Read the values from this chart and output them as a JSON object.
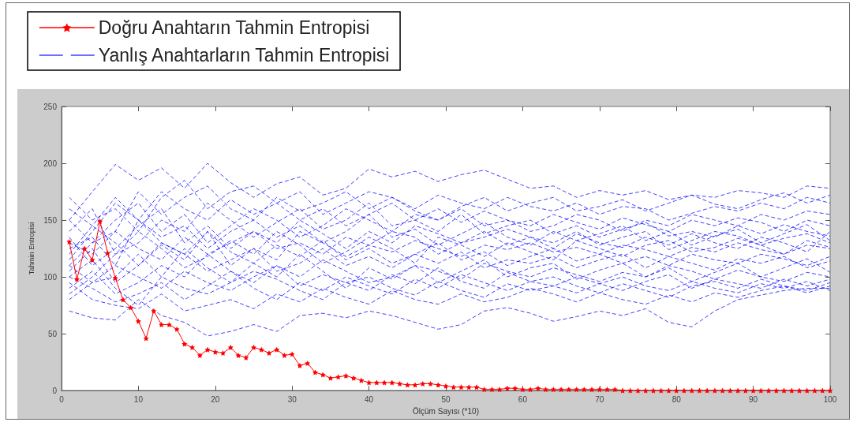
{
  "chart_data": {
    "type": "line",
    "xlabel": "Ölçüm Sayısı (*10)",
    "ylabel": "Tahmin Entropisi",
    "xlim": [
      0,
      100
    ],
    "xticks": [
      0,
      10,
      20,
      30,
      40,
      50,
      60,
      70,
      80,
      90,
      100
    ],
    "ylim": [
      0,
      250
    ],
    "yticks": [
      0,
      50,
      100,
      150,
      200,
      250
    ],
    "grid": false,
    "legend": "top left",
    "x": [
      1,
      4,
      7,
      10,
      13,
      16,
      19,
      22,
      25,
      28,
      31,
      34,
      37,
      40,
      43,
      46,
      49,
      52,
      55,
      58,
      61,
      64,
      67,
      70,
      73,
      76,
      79,
      82,
      85,
      88,
      91,
      94,
      97,
      100
    ],
    "series": [
      {
        "name": "Doğru Anahtarın Tahmin Entropisi",
        "color": "#ff0000",
        "marker": "star",
        "line_style": "solid",
        "x": [
          1,
          2,
          3,
          4,
          5,
          6,
          7,
          8,
          9,
          10,
          11,
          12,
          13,
          14,
          15,
          16,
          17,
          18,
          19,
          20,
          21,
          22,
          23,
          24,
          25,
          26,
          27,
          28,
          29,
          30,
          31,
          32,
          33,
          34,
          35,
          36,
          37,
          38,
          39,
          40,
          41,
          42,
          43,
          44,
          45,
          46,
          47,
          48,
          49,
          50,
          51,
          52,
          53,
          54,
          55,
          56,
          57,
          58,
          59,
          60,
          61,
          62,
          63,
          64,
          65,
          66,
          67,
          68,
          69,
          70,
          71,
          72,
          73,
          74,
          75,
          76,
          77,
          78,
          79,
          80,
          81,
          82,
          83,
          84,
          85,
          86,
          87,
          88,
          89,
          90,
          91,
          92,
          93,
          94,
          95,
          96,
          97,
          98,
          99,
          100
        ],
        "values": [
          131,
          98,
          125,
          115,
          149,
          121,
          99,
          80,
          73,
          61,
          46,
          70,
          58,
          58,
          54,
          41,
          38,
          31,
          36,
          34,
          33,
          38,
          31,
          29,
          38,
          36,
          33,
          36,
          31,
          32,
          22,
          24,
          16,
          14,
          11,
          12,
          13,
          11,
          9,
          7,
          7,
          7,
          7,
          6,
          5,
          5,
          6,
          6,
          5,
          4,
          3,
          3,
          3,
          3,
          1,
          1,
          1,
          2,
          2,
          1,
          1,
          2,
          1,
          1,
          1,
          1,
          1,
          1,
          1,
          1,
          1,
          1,
          0,
          0,
          0,
          0,
          0,
          0,
          0,
          0,
          0,
          0,
          0,
          0,
          0,
          0,
          0,
          0,
          0,
          0,
          0,
          0,
          0,
          0,
          0,
          0,
          0,
          0,
          0,
          0
        ]
      },
      {
        "name": "Yanlış Anahtarların Tahmin Entropisi",
        "color": "#0000ff",
        "marker": "none",
        "line_style": "dashed",
        "values": [
          150,
          175,
          199,
          185,
          196,
          178,
          200,
          183,
          170,
          182,
          188,
          172,
          178,
          195,
          188,
          193,
          184,
          190,
          194,
          186,
          178,
          180,
          170,
          176,
          172,
          176,
          168,
          172,
          170,
          176,
          174,
          170,
          180,
          178
        ]
      },
      {
        "color": "#0000ff",
        "marker": "none",
        "line_style": "dashed",
        "values": [
          70,
          64,
          62,
          80,
          66,
          60,
          48,
          52,
          58,
          52,
          66,
          68,
          64,
          70,
          66,
          60,
          54,
          58,
          70,
          73,
          68,
          61,
          65,
          70,
          66,
          72,
          60,
          56,
          70,
          80,
          84,
          88,
          90,
          90
        ]
      },
      {
        "color": "#0000ff",
        "marker": "none",
        "line_style": "dashed",
        "values": [
          110,
          130,
          150,
          165,
          140,
          155,
          130,
          145,
          160,
          150,
          135,
          145,
          160,
          150,
          140,
          155,
          150,
          160,
          145,
          150,
          140,
          145,
          155,
          150,
          140,
          150,
          145,
          155,
          150,
          145,
          155,
          150,
          158,
          155
        ]
      },
      {
        "color": "#0000ff",
        "marker": "none",
        "line_style": "dashed",
        "values": [
          90,
          105,
          85,
          95,
          110,
          100,
          120,
          105,
          95,
          110,
          100,
          115,
          105,
          95,
          100,
          110,
          105,
          98,
          112,
          105,
          100,
          108,
          102,
          96,
          104,
          100,
          110,
          105,
          98,
          106,
          100,
          96,
          104,
          100
        ]
      },
      {
        "color": "#0000ff",
        "marker": "none",
        "line_style": "dashed",
        "values": [
          130,
          120,
          140,
          125,
          115,
          135,
          120,
          130,
          140,
          125,
          130,
          120,
          135,
          128,
          122,
          132,
          125,
          118,
          128,
          124,
          130,
          122,
          126,
          120,
          128,
          124,
          118,
          126,
          122,
          130,
          124,
          120,
          128,
          125
        ]
      },
      {
        "color": "#0000ff",
        "marker": "none",
        "line_style": "dashed",
        "values": [
          160,
          145,
          170,
          150,
          175,
          160,
          150,
          168,
          155,
          165,
          150,
          160,
          145,
          155,
          165,
          150,
          160,
          148,
          158,
          150,
          145,
          155,
          148,
          142,
          152,
          146,
          140,
          150,
          145,
          152,
          148,
          140,
          150,
          145
        ]
      },
      {
        "color": "#0000ff",
        "marker": "none",
        "line_style": "dashed",
        "values": [
          100,
          90,
          78,
          85,
          95,
          80,
          92,
          105,
          90,
          80,
          95,
          88,
          100,
          92,
          85,
          98,
          90,
          102,
          95,
          88,
          96,
          100,
          92,
          86,
          94,
          88,
          82,
          92,
          96,
          90,
          98,
          92,
          88,
          95
        ]
      },
      {
        "color": "#0000ff",
        "marker": "none",
        "line_style": "dashed",
        "values": [
          120,
          145,
          130,
          110,
          128,
          115,
          140,
          122,
          112,
          128,
          118,
          132,
          115,
          125,
          112,
          120,
          130,
          115,
          122,
          110,
          118,
          125,
          114,
          120,
          112,
          118,
          110,
          120,
          115,
          112,
          120,
          116,
          110,
          118
        ]
      },
      {
        "color": "#0000ff",
        "marker": "none",
        "line_style": "dashed",
        "values": [
          85,
          100,
          120,
          140,
          125,
          108,
          118,
          132,
          120,
          140,
          128,
          112,
          122,
          135,
          125,
          112,
          135,
          128,
          118,
          130,
          122,
          115,
          132,
          125,
          118,
          128,
          132,
          122,
          126,
          134,
          128,
          120,
          132,
          126
        ]
      },
      {
        "color": "#0000ff",
        "marker": "none",
        "line_style": "dashed",
        "values": [
          140,
          160,
          120,
          130,
          150,
          140,
          165,
          150,
          135,
          148,
          160,
          142,
          150,
          165,
          145,
          150,
          140,
          155,
          138,
          145,
          150,
          138,
          145,
          135,
          142,
          148,
          136,
          140,
          135,
          145,
          138,
          146,
          140,
          136
        ]
      },
      {
        "color": "#0000ff",
        "marker": "none",
        "line_style": "dashed",
        "values": [
          110,
          95,
          100,
          120,
          100,
          125,
          108,
          95,
          112,
          100,
          120,
          105,
          90,
          108,
          98,
          110,
          95,
          105,
          115,
          100,
          108,
          112,
          98,
          106,
          112,
          100,
          108,
          96,
          104,
          112,
          100,
          108,
          116,
          104
        ]
      },
      {
        "color": "#0000ff",
        "marker": "none",
        "line_style": "dashed",
        "values": [
          170,
          150,
          160,
          140,
          170,
          185,
          160,
          175,
          180,
          165,
          175,
          155,
          165,
          175,
          170,
          160,
          172,
          165,
          160,
          170,
          162,
          158,
          165,
          155,
          162,
          160,
          150,
          156,
          162,
          158,
          165,
          160,
          170,
          165
        ]
      },
      {
        "color": "#0000ff",
        "marker": "none",
        "line_style": "dashed",
        "values": [
          95,
          80,
          75,
          72,
          85,
          70,
          75,
          80,
          72,
          85,
          78,
          90,
          82,
          76,
          88,
          80,
          76,
          85,
          78,
          82,
          90,
          85,
          78,
          86,
          80,
          76,
          84,
          78,
          86,
          82,
          88,
          92,
          86,
          92
        ]
      },
      {
        "color": "#0000ff",
        "marker": "none",
        "line_style": "dashed",
        "values": [
          125,
          135,
          110,
          150,
          130,
          120,
          140,
          110,
          125,
          115,
          140,
          130,
          118,
          128,
          140,
          135,
          120,
          130,
          140,
          128,
          135,
          125,
          138,
          130,
          126,
          135,
          128,
          138,
          130,
          125,
          135,
          130,
          122,
          140
        ]
      },
      {
        "color": "#0000ff",
        "marker": "none",
        "line_style": "dashed",
        "values": [
          115,
          140,
          165,
          150,
          135,
          145,
          125,
          140,
          150,
          135,
          145,
          130,
          140,
          155,
          135,
          142,
          128,
          138,
          148,
          135,
          128,
          140,
          132,
          138,
          145,
          132,
          140,
          128,
          136,
          142,
          130,
          138,
          146,
          132
        ]
      },
      {
        "color": "#0000ff",
        "marker": "none",
        "line_style": "dashed",
        "values": [
          80,
          95,
          110,
          100,
          90,
          105,
          95,
          88,
          100,
          110,
          92,
          102,
          95,
          88,
          102,
          94,
          108,
          96,
          90,
          104,
          96,
          92,
          100,
          94,
          88,
          96,
          102,
          90,
          98,
          94,
          90,
          98,
          92,
          98
        ]
      },
      {
        "color": "#0000ff",
        "marker": "none",
        "line_style": "dashed",
        "values": [
          135,
          110,
          125,
          145,
          160,
          130,
          145,
          125,
          140,
          130,
          150,
          138,
          125,
          140,
          130,
          145,
          138,
          130,
          135,
          142,
          135,
          130,
          140,
          128,
          135,
          140,
          124,
          132,
          140,
          136,
          128,
          134,
          138,
          130
        ]
      },
      {
        "color": "#0000ff",
        "marker": "none",
        "line_style": "dashed",
        "values": [
          105,
          125,
          95,
          110,
          130,
          120,
          105,
          115,
          125,
          105,
          112,
          125,
          110,
          118,
          108,
          120,
          112,
          122,
          108,
          115,
          112,
          118,
          108,
          115,
          120,
          108,
          118,
          112,
          106,
          116,
          112,
          118,
          108,
          114
        ]
      },
      {
        "color": "#0000ff",
        "marker": "none",
        "line_style": "dashed",
        "values": [
          150,
          130,
          140,
          175,
          155,
          170,
          180,
          160,
          150,
          170,
          158,
          165,
          175,
          160,
          170,
          158,
          150,
          162,
          170,
          158,
          165,
          170,
          158,
          162,
          168,
          158,
          165,
          172,
          164,
          160,
          168,
          174,
          165,
          172
        ]
      },
      {
        "color": "#0000ff",
        "marker": "none",
        "line_style": "dashed",
        "values": [
          100,
          115,
          90,
          75,
          100,
          90,
          85,
          95,
          105,
          98,
          88,
          80,
          95,
          100,
          90,
          84,
          96,
          88,
          82,
          94,
          88,
          92,
          86,
          94,
          100,
          92,
          88,
          96,
          90,
          86,
          94,
          90,
          96,
          88
        ]
      }
    ]
  }
}
